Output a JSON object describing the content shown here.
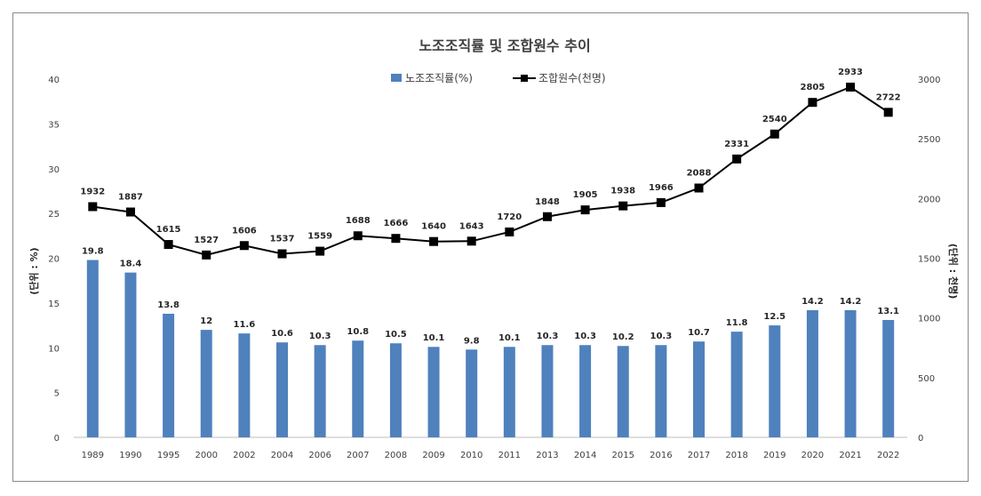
{
  "chart_data": {
    "type": "bar+line",
    "title": "노조조직률 및 조합원수 추이",
    "categories": [
      "1989",
      "1990",
      "1995",
      "2000",
      "2002",
      "2004",
      "2006",
      "2007",
      "2008",
      "2009",
      "2010",
      "2011",
      "2013",
      "2014",
      "2015",
      "2016",
      "2017",
      "2018",
      "2019",
      "2020",
      "2021",
      "2022"
    ],
    "series": [
      {
        "name": "노조조직률(%)",
        "type": "bar",
        "axis": "left",
        "color": "#4f81bd",
        "values": [
          19.8,
          18.4,
          13.8,
          12,
          11.6,
          10.6,
          10.3,
          10.8,
          10.5,
          10.1,
          9.8,
          10.1,
          10.3,
          10.3,
          10.2,
          10.3,
          10.7,
          11.8,
          12.5,
          14.2,
          14.2,
          13.1
        ]
      },
      {
        "name": "조합원수(천명)",
        "type": "line",
        "axis": "right",
        "color": "#000000",
        "values": [
          1932,
          1887,
          1615,
          1527,
          1606,
          1537,
          1559,
          1688,
          1666,
          1640,
          1643,
          1720,
          1848,
          1905,
          1938,
          1966,
          2088,
          2331,
          2540,
          2805,
          2933,
          2722
        ]
      }
    ],
    "ylabel_left": "(단위 : %)",
    "ylabel_right": "(단위 : 천명)",
    "ylim_left": [
      0,
      40
    ],
    "yticks_left": [
      0,
      5,
      10,
      15,
      20,
      25,
      30,
      35,
      40
    ],
    "ylim_right": [
      0,
      3000
    ],
    "yticks_right": [
      0,
      500,
      1000,
      1500,
      2000,
      2500,
      3000
    ],
    "legend_position": "top-center",
    "grid": false
  }
}
